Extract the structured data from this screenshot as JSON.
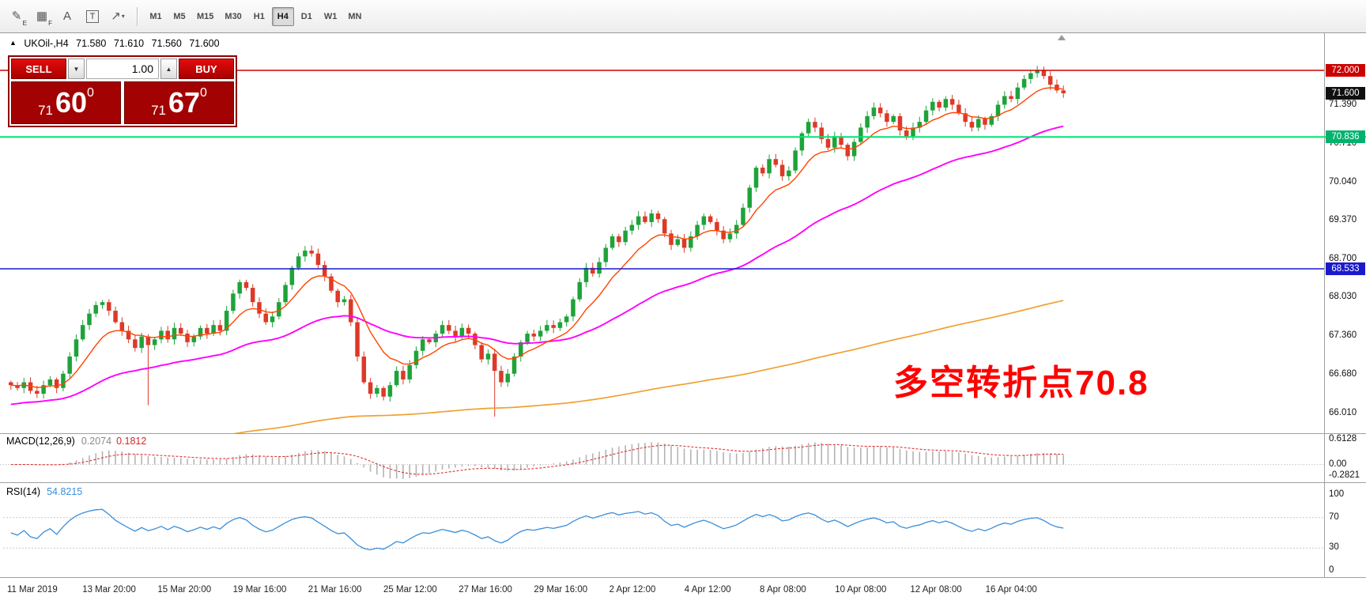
{
  "toolbar": {
    "tools": [
      {
        "name": "pencil-tool",
        "glyph": "✎",
        "sub": "E"
      },
      {
        "name": "grid-tool",
        "glyph": "▦",
        "sub": "F"
      },
      {
        "name": "text-tool",
        "glyph": "A",
        "sub": ""
      },
      {
        "name": "label-tool",
        "glyph": "T",
        "sub": "",
        "boxed": true
      },
      {
        "name": "arrow-tool",
        "glyph": "↗",
        "sub": "",
        "caret": true
      }
    ],
    "timeframes": [
      "M1",
      "M5",
      "M15",
      "M30",
      "H1",
      "H4",
      "D1",
      "W1",
      "MN"
    ],
    "active_timeframe": "H4"
  },
  "chart": {
    "header": {
      "arrow": "▲",
      "symbol_tf": "UKOil-,H4",
      "open": "71.580",
      "high": "71.610",
      "low": "71.560",
      "close": "71.600"
    },
    "trade_panel": {
      "sell_label": "SELL",
      "buy_label": "BUY",
      "volume": "1.00",
      "decrement_glyph": "▼",
      "increment_glyph": "▲",
      "sell_price": {
        "prefix": "71",
        "big": "60",
        "sup": "0"
      },
      "buy_price": {
        "prefix": "71",
        "big": "67",
        "sup": "0"
      }
    },
    "annotation": {
      "text": "多空转折点70.8",
      "color": "#ff0000"
    }
  },
  "indicators": {
    "macd": {
      "label": "MACD(12,26,9)",
      "value_main": "0.2074",
      "value_signal": "0.1812",
      "scale": [
        "0.6128",
        "0.00",
        "-0.2821"
      ]
    },
    "rsi": {
      "label": "RSI(14)",
      "value": "54.8215",
      "scale": [
        "100",
        "70",
        "30",
        "0"
      ],
      "levels": [
        70,
        30
      ]
    }
  },
  "time_axis": [
    "11 Mar 2019",
    "13 Mar 20:00",
    "15 Mar 20:00",
    "19 Mar 16:00",
    "21 Mar 16:00",
    "25 Mar 12:00",
    "27 Mar 16:00",
    "29 Mar 16:00",
    "2 Apr 12:00",
    "4 Apr 12:00",
    "8 Apr 08:00",
    "10 Apr 08:00",
    "12 Apr 08:00",
    "16 Apr 04:00"
  ],
  "price_scale": {
    "ticks": [
      71.39,
      70.71,
      70.04,
      69.37,
      68.7,
      68.03,
      67.36,
      66.68,
      66.01
    ],
    "badges": [
      {
        "text": "72.000",
        "price": 72.0,
        "color": "#cc0000"
      },
      {
        "text": "71.600",
        "price": 71.6,
        "color": "#101010"
      },
      {
        "text": "70.836",
        "price": 70.836,
        "color": "#00b26e"
      },
      {
        "text": "68.533",
        "price": 68.533,
        "color": "#1a1acc"
      }
    ]
  },
  "chart_data": {
    "type": "candlestick",
    "symbol": "UKOil-",
    "timeframe": "H4",
    "ohlc_last": {
      "open": 71.58,
      "high": 71.61,
      "low": 71.56,
      "close": 71.6
    },
    "closes": [
      66.5,
      66.45,
      66.55,
      66.4,
      66.35,
      66.5,
      66.6,
      66.45,
      66.7,
      67.0,
      67.3,
      67.55,
      67.75,
      67.9,
      67.95,
      67.8,
      67.6,
      67.45,
      67.3,
      67.15,
      67.35,
      67.2,
      67.3,
      67.45,
      67.3,
      67.5,
      67.4,
      67.25,
      67.35,
      67.5,
      67.4,
      67.55,
      67.45,
      67.8,
      68.1,
      68.3,
      68.2,
      67.95,
      67.75,
      67.6,
      67.7,
      67.95,
      68.25,
      68.55,
      68.75,
      68.85,
      68.8,
      68.6,
      68.4,
      68.15,
      67.95,
      68.0,
      67.6,
      67.0,
      66.55,
      66.35,
      66.45,
      66.3,
      66.5,
      66.75,
      66.6,
      66.85,
      67.1,
      67.3,
      67.25,
      67.4,
      67.55,
      67.45,
      67.35,
      67.5,
      67.4,
      67.2,
      66.95,
      67.05,
      66.75,
      66.55,
      66.7,
      67.0,
      67.25,
      67.4,
      67.35,
      67.45,
      67.55,
      67.5,
      67.6,
      67.7,
      68.0,
      68.3,
      68.55,
      68.45,
      68.65,
      68.9,
      69.1,
      69.0,
      69.2,
      69.3,
      69.45,
      69.35,
      69.5,
      69.4,
      69.15,
      68.95,
      69.05,
      68.9,
      69.1,
      69.3,
      69.45,
      69.35,
      69.2,
      69.05,
      69.15,
      69.3,
      69.6,
      69.95,
      70.3,
      70.2,
      70.45,
      70.35,
      70.15,
      70.25,
      70.6,
      70.9,
      71.1,
      71.0,
      70.8,
      70.65,
      70.85,
      70.7,
      70.5,
      70.75,
      71.0,
      71.2,
      71.35,
      71.25,
      71.1,
      71.2,
      70.95,
      70.85,
      71.0,
      71.1,
      71.3,
      71.45,
      71.35,
      71.5,
      71.4,
      71.25,
      71.1,
      71.0,
      71.15,
      71.05,
      71.2,
      71.4,
      71.55,
      71.5,
      71.7,
      71.85,
      71.95,
      72.0,
      71.9,
      71.75,
      71.65,
      71.6
    ],
    "wick_overrides": {
      "21": {
        "low": 66.15
      },
      "74": {
        "low": 65.95
      },
      "157": {
        "high": 72.08
      }
    },
    "hlines": [
      {
        "price": 72.0,
        "color": "#cc0000",
        "full_width": false
      },
      {
        "price": 70.836,
        "color": "#00e673",
        "full_width": true
      },
      {
        "price": 68.533,
        "color": "#1a1acc",
        "full_width": false
      }
    ],
    "current_price": 71.6,
    "moving_averages": [
      {
        "name": "fast-ema",
        "color": "#ff4500",
        "period": 10
      },
      {
        "name": "mid-ema",
        "color": "#ff00ff",
        "period": 45,
        "seed": 66.15
      },
      {
        "name": "slow-ema",
        "color": "#f0a030",
        "alpha": 0.007,
        "seed": 65.2
      }
    ],
    "colors": {
      "up": "#1ea33a",
      "down": "#dd3928",
      "macd_hist": "#b4b4b4",
      "macd_signal": "#dd3333",
      "rsi_line": "#3a8fd9",
      "level_line": "#c8c8c8",
      "separator": "#a0a0a0"
    }
  }
}
